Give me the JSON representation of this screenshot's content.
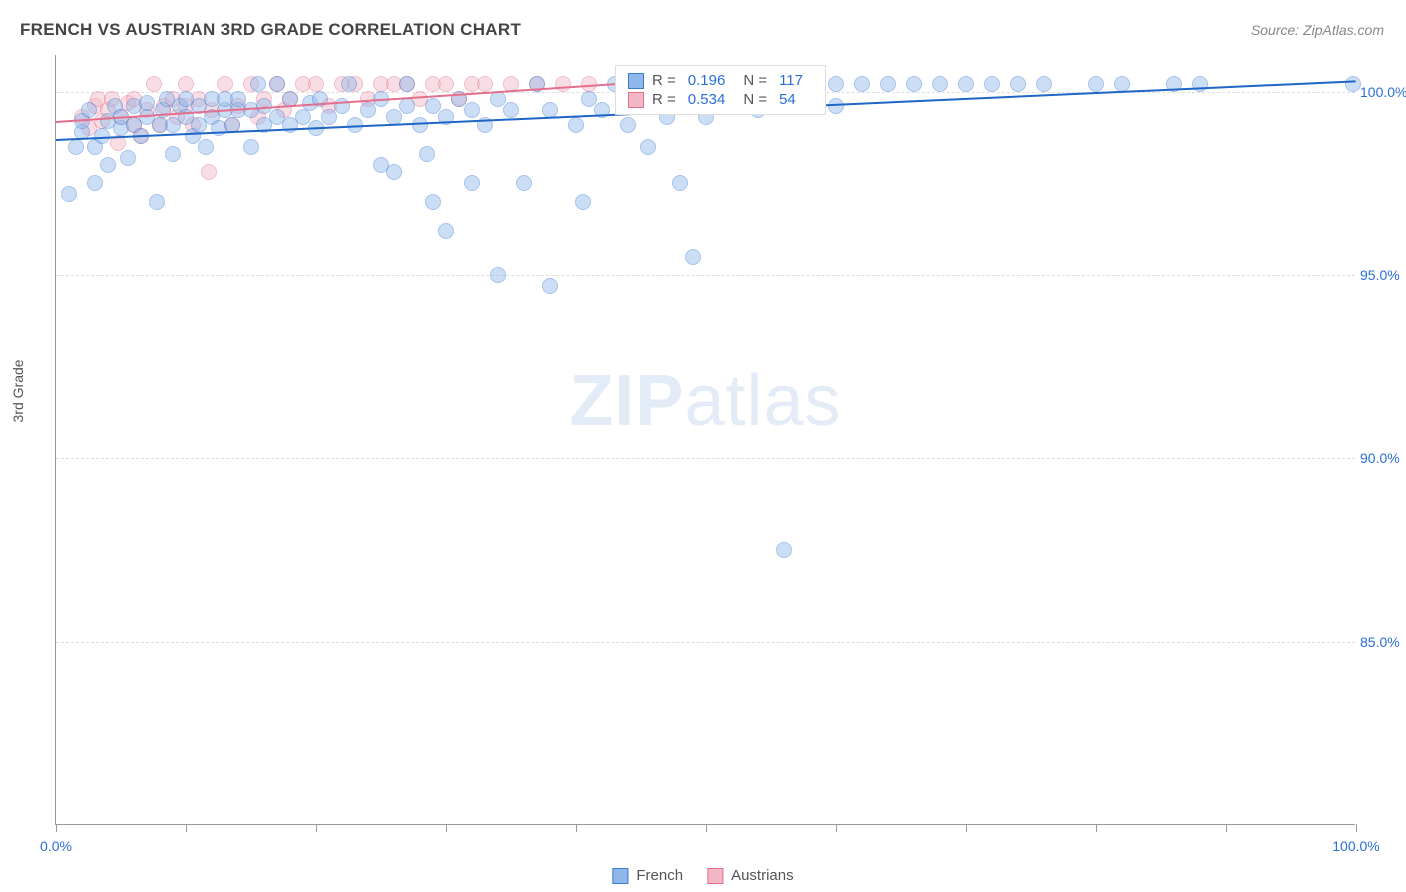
{
  "title": "FRENCH VS AUSTRIAN 3RD GRADE CORRELATION CHART",
  "source": "Source: ZipAtlas.com",
  "ylabel": "3rd Grade",
  "watermark_bold": "ZIP",
  "watermark_rest": "atlas",
  "chart": {
    "type": "scatter",
    "background_color": "#ffffff",
    "grid_color": "#dddddd",
    "axis_color": "#999999",
    "xlim": [
      0,
      100
    ],
    "ylim": [
      80,
      101
    ],
    "xticks": [
      0,
      10,
      20,
      30,
      40,
      50,
      60,
      70,
      80,
      90,
      100
    ],
    "xtick_labels_shown": {
      "0": "0.0%",
      "100": "100.0%"
    },
    "yticks": [
      85,
      90,
      95,
      100
    ],
    "ytick_labels": {
      "85": "85.0%",
      "90": "90.0%",
      "95": "95.0%",
      "100": "100.0%"
    },
    "label_fontsize": 14,
    "label_color": "#2a6fd6",
    "marker_radius": 8,
    "marker_opacity": 0.45,
    "series": [
      {
        "name": "French",
        "fill": "#8fb8ea",
        "stroke": "#3b7bd1",
        "trend_color": "#1f66c7",
        "trend": {
          "x1": 0,
          "y1": 98.7,
          "x2": 100,
          "y2": 100.3
        },
        "points": [
          [
            1,
            97.2
          ],
          [
            1.5,
            98.5
          ],
          [
            2,
            98.9
          ],
          [
            2,
            99.2
          ],
          [
            2.5,
            99.5
          ],
          [
            3,
            97.5
          ],
          [
            3,
            98.5
          ],
          [
            3.5,
            98.8
          ],
          [
            4,
            99.2
          ],
          [
            4,
            98.0
          ],
          [
            4.5,
            99.6
          ],
          [
            5,
            99.0
          ],
          [
            5,
            99.3
          ],
          [
            5.5,
            98.2
          ],
          [
            6,
            99.1
          ],
          [
            6,
            99.6
          ],
          [
            6.5,
            98.8
          ],
          [
            7,
            99.3
          ],
          [
            7,
            99.7
          ],
          [
            7.8,
            97.0
          ],
          [
            8,
            99.1
          ],
          [
            8.2,
            99.5
          ],
          [
            8.5,
            99.8
          ],
          [
            9,
            99.1
          ],
          [
            9,
            98.3
          ],
          [
            9.5,
            99.6
          ],
          [
            10,
            99.3
          ],
          [
            10,
            99.8
          ],
          [
            10.5,
            98.8
          ],
          [
            11,
            99.1
          ],
          [
            11,
            99.6
          ],
          [
            11.5,
            98.5
          ],
          [
            12,
            99.3
          ],
          [
            12,
            99.8
          ],
          [
            12.5,
            99.0
          ],
          [
            13,
            99.5
          ],
          [
            13,
            99.8
          ],
          [
            13.5,
            99.1
          ],
          [
            14,
            99.5
          ],
          [
            14,
            99.8
          ],
          [
            15,
            98.5
          ],
          [
            15,
            99.5
          ],
          [
            15.5,
            100.2
          ],
          [
            16,
            99.1
          ],
          [
            16,
            99.6
          ],
          [
            17,
            99.3
          ],
          [
            17,
            100.2
          ],
          [
            18,
            99.1
          ],
          [
            18,
            99.8
          ],
          [
            19,
            99.3
          ],
          [
            19.5,
            99.7
          ],
          [
            20,
            99.0
          ],
          [
            20.3,
            99.8
          ],
          [
            21,
            99.3
          ],
          [
            22,
            99.6
          ],
          [
            22.5,
            100.2
          ],
          [
            23,
            99.1
          ],
          [
            24,
            99.5
          ],
          [
            25,
            99.8
          ],
          [
            25,
            98.0
          ],
          [
            26,
            99.3
          ],
          [
            26,
            97.8
          ],
          [
            27,
            99.6
          ],
          [
            27,
            100.2
          ],
          [
            28,
            99.1
          ],
          [
            28.5,
            98.3
          ],
          [
            29,
            99.6
          ],
          [
            29,
            97.0
          ],
          [
            30,
            99.3
          ],
          [
            30,
            96.2
          ],
          [
            31,
            99.8
          ],
          [
            32,
            99.5
          ],
          [
            32,
            97.5
          ],
          [
            33,
            99.1
          ],
          [
            34,
            99.8
          ],
          [
            34,
            95.0
          ],
          [
            35,
            99.5
          ],
          [
            36,
            97.5
          ],
          [
            37,
            100.2
          ],
          [
            38,
            94.7
          ],
          [
            38,
            99.5
          ],
          [
            40,
            99.1
          ],
          [
            40.5,
            97.0
          ],
          [
            41,
            99.8
          ],
          [
            42,
            99.5
          ],
          [
            43,
            100.2
          ],
          [
            44,
            99.1
          ],
          [
            45,
            99.6
          ],
          [
            45.5,
            98.5
          ],
          [
            47,
            99.3
          ],
          [
            48,
            97.5
          ],
          [
            48,
            100.2
          ],
          [
            49,
            99.6
          ],
          [
            49,
            95.5
          ],
          [
            50,
            99.3
          ],
          [
            52,
            100.2
          ],
          [
            53,
            99.8
          ],
          [
            54,
            99.5
          ],
          [
            55,
            100.2
          ],
          [
            56,
            99.8
          ],
          [
            56,
            87.5
          ],
          [
            58,
            100.2
          ],
          [
            60,
            99.6
          ],
          [
            60,
            100.2
          ],
          [
            62,
            100.2
          ],
          [
            64,
            100.2
          ],
          [
            66,
            100.2
          ],
          [
            68,
            100.2
          ],
          [
            70,
            100.2
          ],
          [
            72,
            100.2
          ],
          [
            74,
            100.2
          ],
          [
            76,
            100.2
          ],
          [
            80,
            100.2
          ],
          [
            82,
            100.2
          ],
          [
            86,
            100.2
          ],
          [
            88,
            100.2
          ],
          [
            99.8,
            100.2
          ]
        ]
      },
      {
        "name": "Austrians",
        "fill": "#f3b6c4",
        "stroke": "#e36f8d",
        "trend_color": "#e36f8d",
        "trend": {
          "x1": 0,
          "y1": 99.2,
          "x2": 50,
          "y2": 100.4
        },
        "points": [
          [
            2,
            99.3
          ],
          [
            2.5,
            99.0
          ],
          [
            3,
            99.6
          ],
          [
            3.2,
            99.8
          ],
          [
            3.5,
            99.2
          ],
          [
            4,
            99.5
          ],
          [
            4.3,
            99.8
          ],
          [
            4.8,
            98.6
          ],
          [
            5,
            99.3
          ],
          [
            5.5,
            99.7
          ],
          [
            6,
            99.1
          ],
          [
            6,
            99.8
          ],
          [
            6.5,
            98.8
          ],
          [
            7,
            99.5
          ],
          [
            7.5,
            100.2
          ],
          [
            8,
            99.1
          ],
          [
            8.3,
            99.6
          ],
          [
            9,
            99.8
          ],
          [
            9.3,
            99.3
          ],
          [
            10,
            99.6
          ],
          [
            10,
            100.2
          ],
          [
            10.5,
            99.1
          ],
          [
            11,
            99.8
          ],
          [
            11.8,
            97.8
          ],
          [
            12,
            99.5
          ],
          [
            13,
            100.2
          ],
          [
            13.5,
            99.1
          ],
          [
            14,
            99.6
          ],
          [
            15,
            100.2
          ],
          [
            15.5,
            99.3
          ],
          [
            16,
            99.8
          ],
          [
            17,
            100.2
          ],
          [
            17.5,
            99.5
          ],
          [
            18,
            99.8
          ],
          [
            19,
            100.2
          ],
          [
            20,
            100.2
          ],
          [
            21,
            99.6
          ],
          [
            22,
            100.2
          ],
          [
            23,
            100.2
          ],
          [
            24,
            99.8
          ],
          [
            25,
            100.2
          ],
          [
            26,
            100.2
          ],
          [
            27,
            100.2
          ],
          [
            28,
            99.8
          ],
          [
            29,
            100.2
          ],
          [
            30,
            100.2
          ],
          [
            31,
            99.8
          ],
          [
            32,
            100.2
          ],
          [
            33,
            100.2
          ],
          [
            35,
            100.2
          ],
          [
            37,
            100.2
          ],
          [
            39,
            100.2
          ],
          [
            41,
            100.2
          ],
          [
            44,
            100.2
          ]
        ]
      }
    ]
  },
  "stats_box": {
    "rows": [
      {
        "swatch_fill": "#8fb8ea",
        "swatch_stroke": "#3b7bd1",
        "r_label": "R =",
        "r_val": "0.196",
        "n_label": "N =",
        "n_val": "117"
      },
      {
        "swatch_fill": "#f3b6c4",
        "swatch_stroke": "#e36f8d",
        "r_label": "R =",
        "r_val": "0.534",
        "n_label": "N =",
        "n_val": "54"
      }
    ]
  },
  "bottom_legend": [
    {
      "swatch_fill": "#8fb8ea",
      "swatch_stroke": "#3b7bd1",
      "label": "French"
    },
    {
      "swatch_fill": "#f3b6c4",
      "swatch_stroke": "#e36f8d",
      "label": "Austrians"
    }
  ]
}
